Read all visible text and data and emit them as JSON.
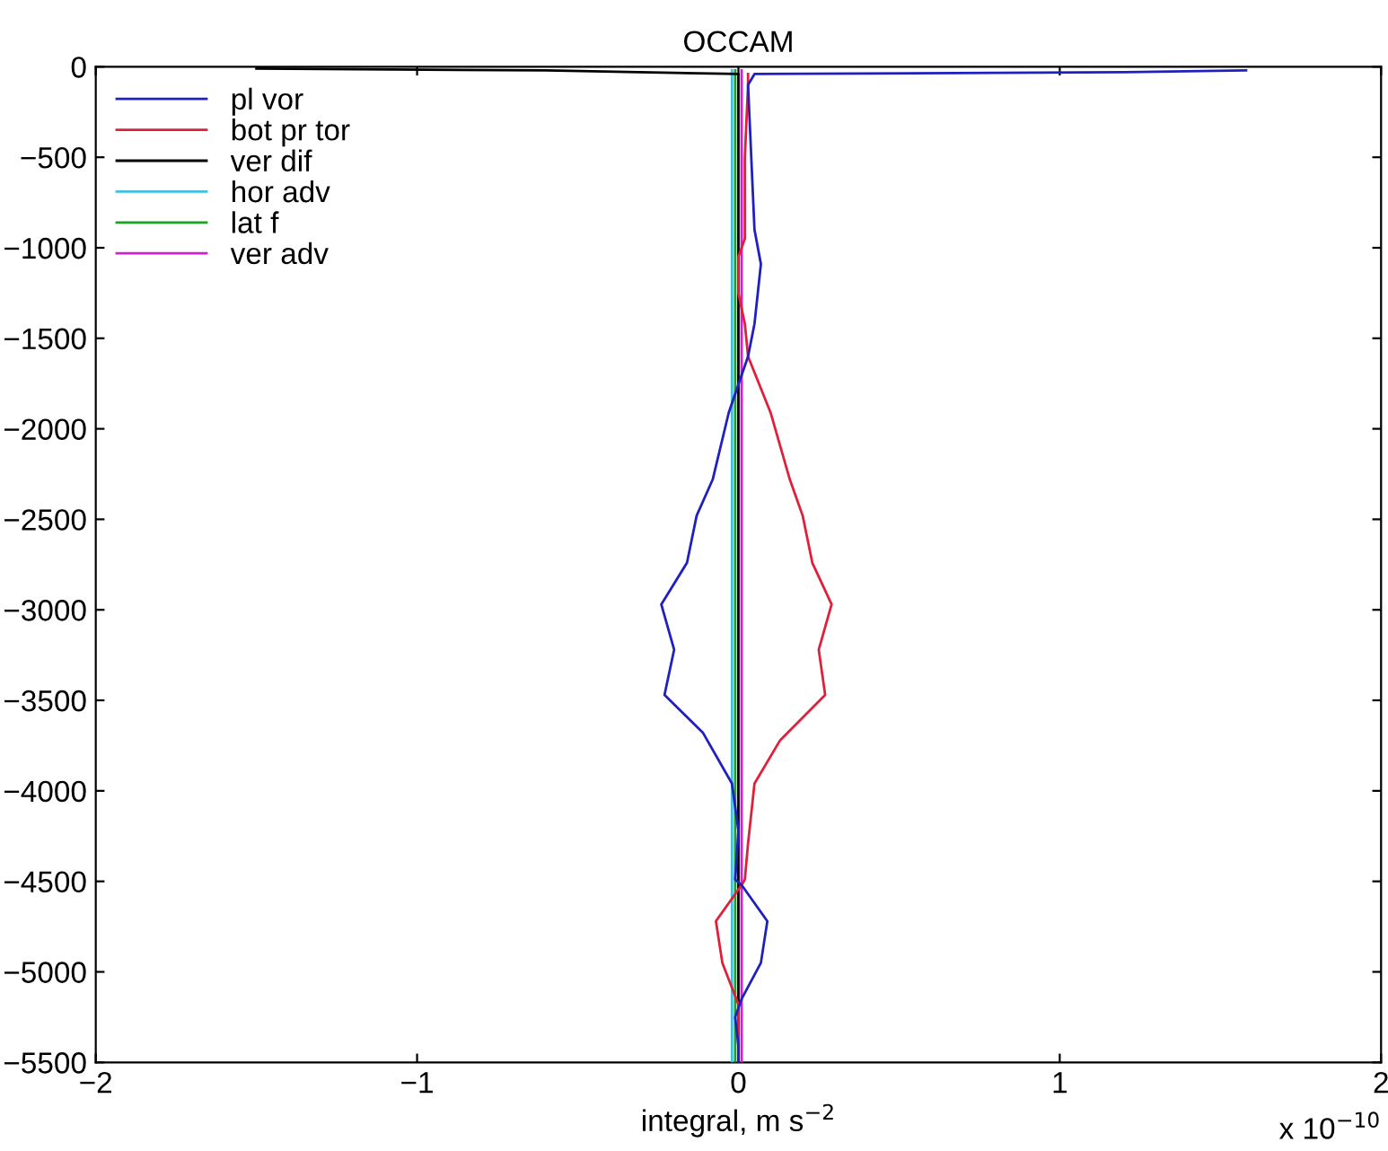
{
  "chart_data": {
    "type": "line",
    "title": "OCCAM",
    "xlabel": "integral, m s$^{−2}$",
    "annotations": [
      "x 10$^{−10}$"
    ],
    "xlim": [
      -2,
      2
    ],
    "xticks": [
      -2,
      -1,
      0,
      1,
      2
    ],
    "ylim": [
      -5500,
      0
    ],
    "yticks": [
      -5500,
      -5000,
      -4500,
      -4000,
      -3500,
      -3000,
      -2500,
      -2000,
      -1500,
      -1000,
      -500,
      0
    ],
    "grid": false,
    "legend": "top left",
    "line_style": "solid",
    "marker": "none",
    "series": [
      {
        "name": "pl vor",
        "color": "#2020c0",
        "x": [
          1.58,
          1.2,
          0.05,
          0.03,
          0.04,
          0.05,
          0.07,
          0.05,
          0.03,
          -0.03,
          -0.08,
          -0.13,
          -0.16,
          -0.24,
          -0.2,
          -0.23,
          -0.11,
          -0.02,
          0,
          -0.01,
          0.01,
          0.09,
          0.07,
          0.01,
          -0.01,
          0,
          0
        ],
        "values": [
          -20,
          -30,
          -40,
          -100,
          -500,
          -900,
          -1090,
          -1420,
          -1600,
          -1910,
          -2280,
          -2480,
          -2740,
          -2970,
          -3220,
          -3470,
          -3680,
          -3960,
          -4220,
          -4490,
          -4520,
          -4720,
          -4950,
          -5150,
          -5250,
          -5410,
          -5500
        ]
      },
      {
        "name": "bot pr tor",
        "color": "#e0203a",
        "x": [
          0.03,
          0.03,
          0.02,
          0.02,
          0,
          0,
          0.02,
          0.03,
          0.1,
          0.16,
          0.2,
          0.23,
          0.29,
          0.25,
          0.27,
          0.13,
          0.05,
          0.03,
          0.02,
          0.01,
          -0.07,
          -0.05,
          0,
          0
        ],
        "values": [
          -40,
          -100,
          -500,
          -950,
          -1050,
          -1250,
          -1420,
          -1600,
          -1910,
          -2280,
          -2480,
          -2740,
          -2970,
          -3220,
          -3470,
          -3720,
          -3960,
          -4290,
          -4490,
          -4520,
          -4720,
          -4950,
          -5180,
          -5500
        ]
      },
      {
        "name": "ver dif",
        "color": "#000000",
        "x": [
          -1.5,
          -0.6,
          0,
          0,
          0
        ],
        "values": [
          -10,
          -20,
          -40,
          -2000,
          -5500
        ]
      },
      {
        "name": "hor adv",
        "color": "#40c0e0",
        "x": [
          -0.02,
          -0.02,
          -0.02
        ],
        "values": [
          -20,
          -3000,
          -5500
        ]
      },
      {
        "name": "lat f",
        "color": "#20a020",
        "x": [
          -0.01,
          -0.01,
          -0.01
        ],
        "values": [
          -20,
          -3000,
          -5500
        ]
      },
      {
        "name": "ver adv",
        "color": "#d020d0",
        "x": [
          0.01,
          0.01,
          0.01,
          0.01
        ],
        "values": [
          -20,
          -500,
          -3000,
          -5500
        ]
      }
    ]
  }
}
